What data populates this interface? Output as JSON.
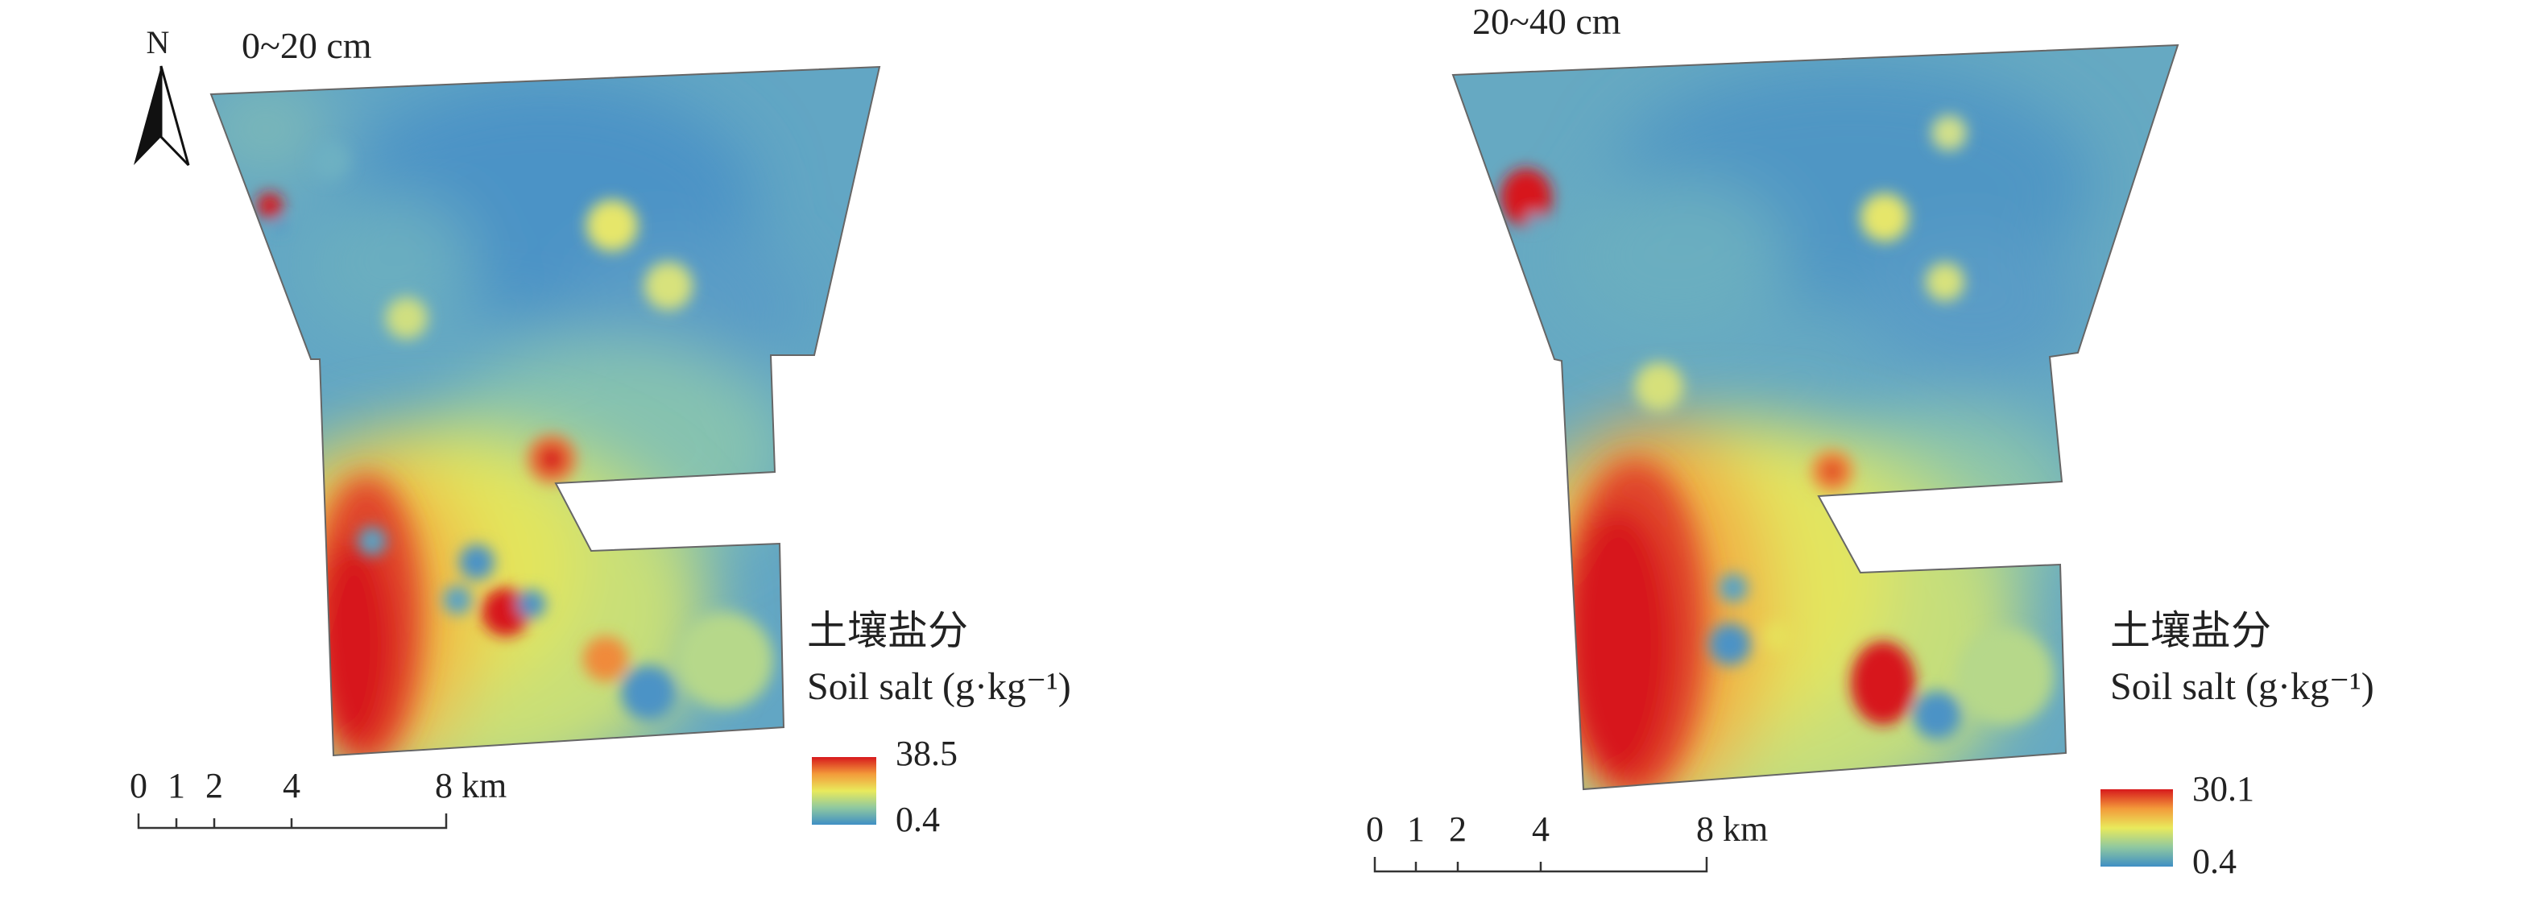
{
  "north_arrow": {
    "label": "N"
  },
  "maps": [
    {
      "depth_label": "0~20 cm",
      "legend": {
        "title_zh": "土壤盐分",
        "title_en": "Soil salt (g·kg⁻¹)",
        "max": "38.5",
        "min": "0.4"
      },
      "scale_bar": {
        "ticks": [
          "0",
          "1",
          "2",
          "4",
          "8 km"
        ]
      }
    },
    {
      "depth_label": "20~40 cm",
      "legend": {
        "title_zh": "土壤盐分",
        "title_en": "Soil salt (g·kg⁻¹)",
        "max": "30.1",
        "min": "0.4"
      },
      "scale_bar": {
        "ticks": [
          "0",
          "1",
          "2",
          "4",
          "8 km"
        ]
      }
    }
  ],
  "colors": {
    "low": "#3f8fc4",
    "mid_low": "#7dbfae",
    "mid": "#e8e85a",
    "mid_high": "#f0a040",
    "high": "#d7191c",
    "background_field": "#5a9ec4",
    "outline": "#555555"
  }
}
